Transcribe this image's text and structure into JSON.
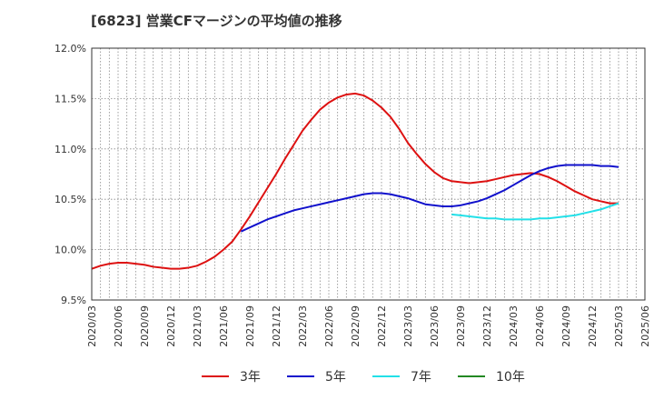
{
  "chart_data": {
    "type": "line",
    "title": "[6823]  営業CFマージンの平均値の推移",
    "xlabel": "",
    "ylabel": "",
    "ylim": [
      9.5,
      12.0
    ],
    "yticks": [
      "9.5%",
      "10.0%",
      "10.5%",
      "11.0%",
      "11.5%",
      "12.0%"
    ],
    "xticks": [
      "2020/03",
      "2020/06",
      "2020/09",
      "2020/12",
      "2021/03",
      "2021/06",
      "2021/09",
      "2021/12",
      "2022/03",
      "2022/06",
      "2022/09",
      "2022/12",
      "2023/03",
      "2023/06",
      "2023/09",
      "2023/12",
      "2024/03",
      "2024/06",
      "2024/09",
      "2024/12",
      "2025/03",
      "2025/06"
    ],
    "grid": true,
    "legend_position": "bottom",
    "series": [
      {
        "name": "3年",
        "color": "#dd1111",
        "points": [
          [
            "2020/03",
            9.81
          ],
          [
            "2020/04",
            9.84
          ],
          [
            "2020/05",
            9.86
          ],
          [
            "2020/06",
            9.87
          ],
          [
            "2020/07",
            9.87
          ],
          [
            "2020/08",
            9.86
          ],
          [
            "2020/09",
            9.85
          ],
          [
            "2020/10",
            9.83
          ],
          [
            "2020/11",
            9.82
          ],
          [
            "2020/12",
            9.81
          ],
          [
            "2021/01",
            9.81
          ],
          [
            "2021/02",
            9.82
          ],
          [
            "2021/03",
            9.84
          ],
          [
            "2021/04",
            9.88
          ],
          [
            "2021/05",
            9.93
          ],
          [
            "2021/06",
            10.0
          ],
          [
            "2021/07",
            10.08
          ],
          [
            "2021/08",
            10.2
          ],
          [
            "2021/09",
            10.33
          ],
          [
            "2021/10",
            10.47
          ],
          [
            "2021/11",
            10.61
          ],
          [
            "2021/12",
            10.75
          ],
          [
            "2022/01",
            10.9
          ],
          [
            "2022/02",
            11.04
          ],
          [
            "2022/03",
            11.18
          ],
          [
            "2022/04",
            11.29
          ],
          [
            "2022/05",
            11.39
          ],
          [
            "2022/06",
            11.46
          ],
          [
            "2022/07",
            11.51
          ],
          [
            "2022/08",
            11.54
          ],
          [
            "2022/09",
            11.55
          ],
          [
            "2022/10",
            11.53
          ],
          [
            "2022/11",
            11.48
          ],
          [
            "2022/12",
            11.41
          ],
          [
            "2023/01",
            11.32
          ],
          [
            "2023/02",
            11.2
          ],
          [
            "2023/03",
            11.06
          ],
          [
            "2023/04",
            10.95
          ],
          [
            "2023/05",
            10.85
          ],
          [
            "2023/06",
            10.77
          ],
          [
            "2023/07",
            10.71
          ],
          [
            "2023/08",
            10.68
          ],
          [
            "2023/09",
            10.67
          ],
          [
            "2023/10",
            10.66
          ],
          [
            "2023/11",
            10.67
          ],
          [
            "2023/12",
            10.68
          ],
          [
            "2024/01",
            10.7
          ],
          [
            "2024/02",
            10.72
          ],
          [
            "2024/03",
            10.74
          ],
          [
            "2024/04",
            10.75
          ],
          [
            "2024/05",
            10.76
          ],
          [
            "2024/06",
            10.75
          ],
          [
            "2024/07",
            10.72
          ],
          [
            "2024/08",
            10.68
          ],
          [
            "2024/09",
            10.63
          ],
          [
            "2024/10",
            10.58
          ],
          [
            "2024/11",
            10.54
          ],
          [
            "2024/12",
            10.5
          ],
          [
            "2025/01",
            10.48
          ],
          [
            "2025/02",
            10.46
          ],
          [
            "2025/03",
            10.46
          ]
        ]
      },
      {
        "name": "5年",
        "color": "#1111cc",
        "points": [
          [
            "2021/08",
            10.18
          ],
          [
            "2021/09",
            10.22
          ],
          [
            "2021/10",
            10.26
          ],
          [
            "2021/11",
            10.3
          ],
          [
            "2021/12",
            10.33
          ],
          [
            "2022/01",
            10.36
          ],
          [
            "2022/02",
            10.39
          ],
          [
            "2022/03",
            10.41
          ],
          [
            "2022/04",
            10.43
          ],
          [
            "2022/05",
            10.45
          ],
          [
            "2022/06",
            10.47
          ],
          [
            "2022/07",
            10.49
          ],
          [
            "2022/08",
            10.51
          ],
          [
            "2022/09",
            10.53
          ],
          [
            "2022/10",
            10.55
          ],
          [
            "2022/11",
            10.56
          ],
          [
            "2022/12",
            10.56
          ],
          [
            "2023/01",
            10.55
          ],
          [
            "2023/02",
            10.53
          ],
          [
            "2023/03",
            10.51
          ],
          [
            "2023/04",
            10.48
          ],
          [
            "2023/05",
            10.45
          ],
          [
            "2023/06",
            10.44
          ],
          [
            "2023/07",
            10.43
          ],
          [
            "2023/08",
            10.43
          ],
          [
            "2023/09",
            10.44
          ],
          [
            "2023/10",
            10.46
          ],
          [
            "2023/11",
            10.48
          ],
          [
            "2023/12",
            10.51
          ],
          [
            "2024/01",
            10.55
          ],
          [
            "2024/02",
            10.59
          ],
          [
            "2024/03",
            10.64
          ],
          [
            "2024/04",
            10.69
          ],
          [
            "2024/05",
            10.74
          ],
          [
            "2024/06",
            10.78
          ],
          [
            "2024/07",
            10.81
          ],
          [
            "2024/08",
            10.83
          ],
          [
            "2024/09",
            10.84
          ],
          [
            "2024/10",
            10.84
          ],
          [
            "2024/11",
            10.84
          ],
          [
            "2024/12",
            10.84
          ],
          [
            "2025/01",
            10.83
          ],
          [
            "2025/02",
            10.83
          ],
          [
            "2025/03",
            10.82
          ]
        ]
      },
      {
        "name": "7年",
        "color": "#22e0e8",
        "points": [
          [
            "2023/08",
            10.35
          ],
          [
            "2023/09",
            10.34
          ],
          [
            "2023/10",
            10.33
          ],
          [
            "2023/11",
            10.32
          ],
          [
            "2023/12",
            10.31
          ],
          [
            "2024/01",
            10.31
          ],
          [
            "2024/02",
            10.3
          ],
          [
            "2024/03",
            10.3
          ],
          [
            "2024/04",
            10.3
          ],
          [
            "2024/05",
            10.3
          ],
          [
            "2024/06",
            10.31
          ],
          [
            "2024/07",
            10.31
          ],
          [
            "2024/08",
            10.32
          ],
          [
            "2024/09",
            10.33
          ],
          [
            "2024/10",
            10.34
          ],
          [
            "2024/11",
            10.36
          ],
          [
            "2024/12",
            10.38
          ],
          [
            "2025/01",
            10.4
          ],
          [
            "2025/02",
            10.43
          ],
          [
            "2025/03",
            10.46
          ]
        ]
      },
      {
        "name": "10年",
        "color": "#228822",
        "points": []
      }
    ]
  }
}
